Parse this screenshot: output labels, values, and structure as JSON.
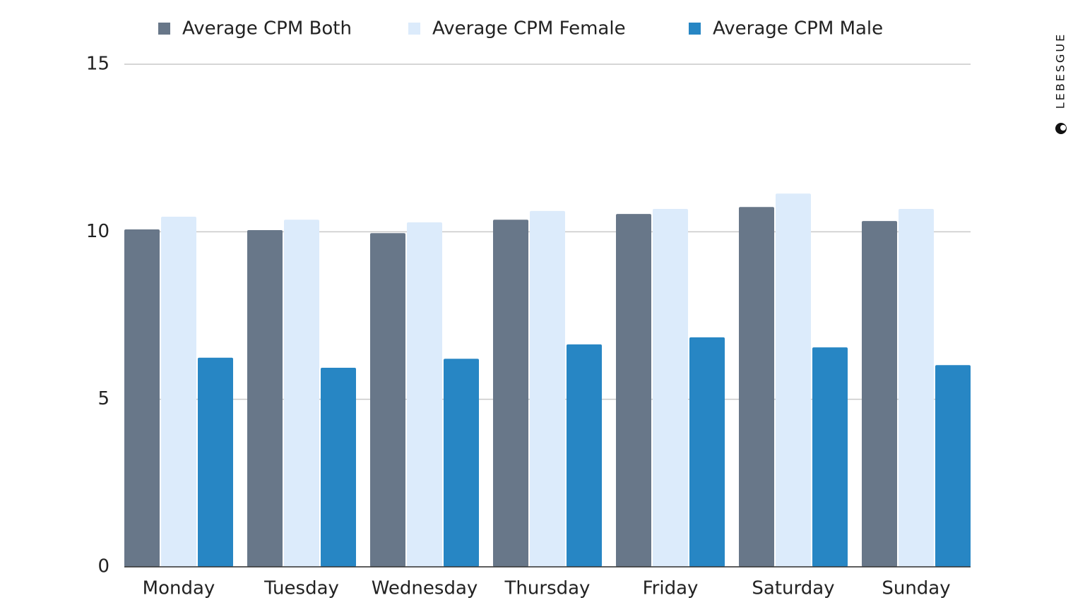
{
  "chart_data": {
    "type": "bar",
    "categories": [
      "Monday",
      "Tuesday",
      "Wednesday",
      "Thursday",
      "Friday",
      "Saturday",
      "Sunday"
    ],
    "series": [
      {
        "name": "Average CPM Both",
        "color": "#687789",
        "values": [
          10.07,
          10.05,
          9.96,
          10.36,
          10.53,
          10.74,
          10.32
        ]
      },
      {
        "name": "Average CPM Female",
        "color": "#dcebfb",
        "values": [
          10.45,
          10.36,
          10.28,
          10.62,
          10.68,
          11.14,
          10.68
        ]
      },
      {
        "name": "Average CPM Male",
        "color": "#2786c4",
        "values": [
          6.24,
          5.94,
          6.21,
          6.64,
          6.85,
          6.55,
          6.02
        ]
      }
    ],
    "ylim": [
      0,
      15
    ],
    "yticks": [
      0,
      5,
      10,
      15
    ],
    "grid": true,
    "watermark": "LEBESGUE"
  }
}
